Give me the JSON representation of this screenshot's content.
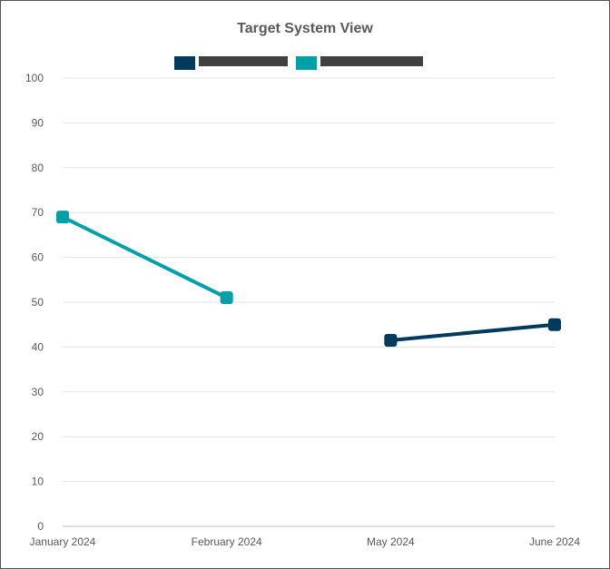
{
  "chart_data": {
    "type": "line",
    "title": "Target System View",
    "xlabel": "",
    "ylabel": "",
    "categories": [
      "January 2024",
      "February 2024",
      "May 2024",
      "June 2024"
    ],
    "ylim": [
      0,
      100
    ],
    "yticks": [
      0,
      10,
      20,
      30,
      40,
      50,
      60,
      70,
      80,
      90,
      100
    ],
    "grid": true,
    "legend_position": "top",
    "series": [
      {
        "color": "#003a5d",
        "values": [
          null,
          null,
          41.5,
          45
        ]
      },
      {
        "color": "#00a0aa",
        "values": [
          69,
          51,
          null,
          null
        ]
      }
    ]
  }
}
